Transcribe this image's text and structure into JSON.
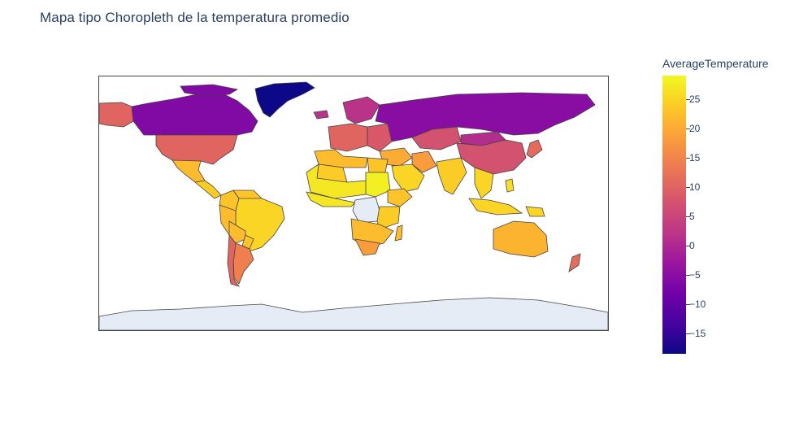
{
  "title": "Mapa tipo Choropleth de la temperatura promedio",
  "colorbar": {
    "title": "AverageTemperature",
    "min": -18.5,
    "max": 29,
    "ticks": [
      "25",
      "20",
      "15",
      "10",
      "5",
      "0",
      "−5",
      "−10",
      "−15"
    ],
    "tick_values": [
      25,
      20,
      15,
      10,
      5,
      0,
      -5,
      -10,
      -15
    ],
    "colorscale": [
      "#0d0887",
      "#46039f",
      "#7201a8",
      "#9c179e",
      "#bd3786",
      "#d8576b",
      "#ed7953",
      "#fb9f3a",
      "#fdca26",
      "#f0f921"
    ]
  },
  "colors": {
    "no_data": "#e5ecf6",
    "border": "#444444"
  },
  "regions": [
    {
      "name": "Greenland",
      "value": -18.5
    },
    {
      "name": "Canada",
      "value": -6
    },
    {
      "name": "Alaska",
      "value": 10
    },
    {
      "name": "United States",
      "value": 10
    },
    {
      "name": "Mexico",
      "value": 22
    },
    {
      "name": "Central America",
      "value": 24
    },
    {
      "name": "Colombia",
      "value": 23
    },
    {
      "name": "Venezuela",
      "value": 23
    },
    {
      "name": "Brazil",
      "value": 25
    },
    {
      "name": "Peru",
      "value": 22
    },
    {
      "name": "Bolivia",
      "value": 22
    },
    {
      "name": "Paraguay",
      "value": 23
    },
    {
      "name": "Argentina",
      "value": 14
    },
    {
      "name": "Chile",
      "value": 10
    },
    {
      "name": "Iceland",
      "value": 2
    },
    {
      "name": "Scandinavia",
      "value": 2
    },
    {
      "name": "Europe West",
      "value": 10
    },
    {
      "name": "Europe East",
      "value": 8
    },
    {
      "name": "Russia",
      "value": -5
    },
    {
      "name": "Kazakhstan",
      "value": 7
    },
    {
      "name": "Mongolia",
      "value": 1
    },
    {
      "name": "China",
      "value": 7
    },
    {
      "name": "Japan",
      "value": 11
    },
    {
      "name": "Middle East",
      "value": 20
    },
    {
      "name": "Arabian Peninsula",
      "value": 25
    },
    {
      "name": "Iran",
      "value": 18
    },
    {
      "name": "India",
      "value": 24
    },
    {
      "name": "Southeast Asia",
      "value": 25
    },
    {
      "name": "Indonesia",
      "value": 25
    },
    {
      "name": "Papua New Guinea",
      "value": 25
    },
    {
      "name": "Philippines",
      "value": 26
    },
    {
      "name": "North Africa",
      "value": 22
    },
    {
      "name": "Algeria",
      "value": 24
    },
    {
      "name": "Sahel",
      "value": 27
    },
    {
      "name": "West Africa",
      "value": 27
    },
    {
      "name": "Sudan",
      "value": 28
    },
    {
      "name": "Egypt",
      "value": 23
    },
    {
      "name": "Ethiopia",
      "value": 23
    },
    {
      "name": "Congo DR",
      "value": null
    },
    {
      "name": "East Africa",
      "value": 24
    },
    {
      "name": "Southern Africa",
      "value": 22
    },
    {
      "name": "South Africa",
      "value": 18
    },
    {
      "name": "Madagascar",
      "value": 22
    },
    {
      "name": "Australia",
      "value": 21
    },
    {
      "name": "New Zealand",
      "value": 11
    },
    {
      "name": "Antarctica",
      "value": null
    }
  ]
}
